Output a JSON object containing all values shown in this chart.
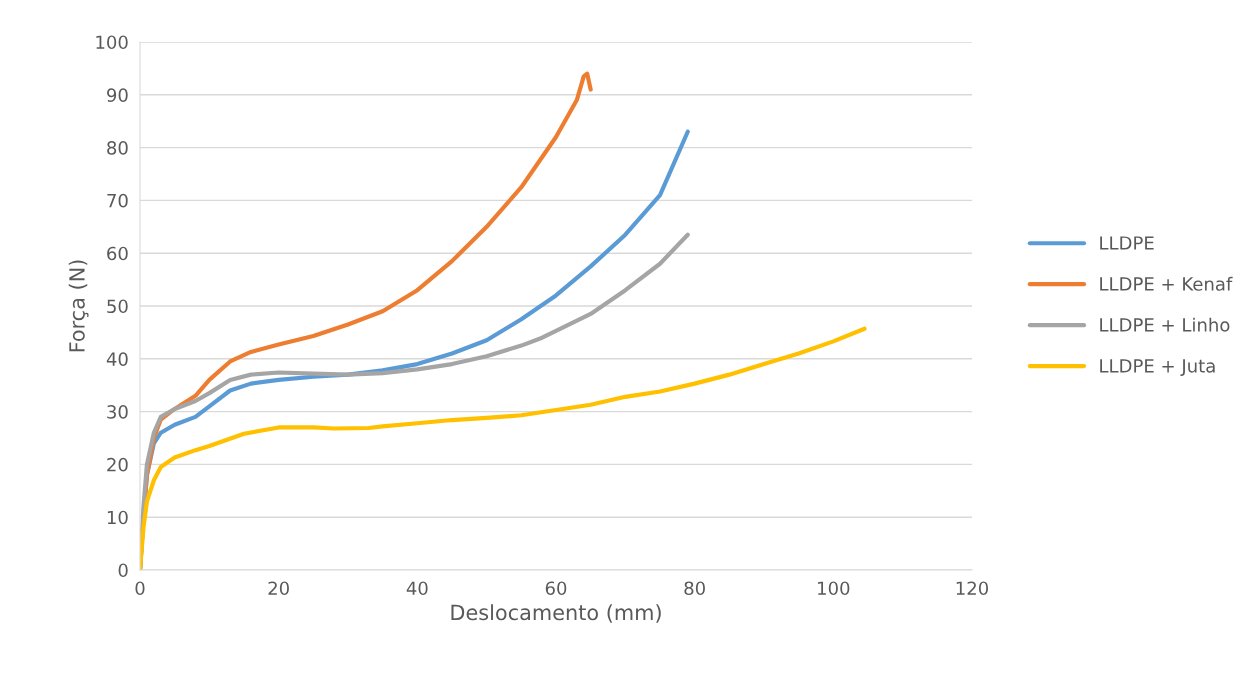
{
  "chart_data": {
    "type": "line",
    "xlabel": "Deslocamento (mm)",
    "ylabel": "Força (N)",
    "xlim": [
      0,
      120
    ],
    "xticks": [
      0,
      20,
      40,
      60,
      80,
      100,
      120
    ],
    "ylim": [
      0,
      100
    ],
    "yticks": [
      0,
      10,
      20,
      30,
      40,
      50,
      60,
      70,
      80,
      90,
      100
    ],
    "grid": "y",
    "legend": "right",
    "marker": "none",
    "line_style": "solid",
    "series": [
      {
        "name": "LLDPE",
        "color": "#5b9bd5",
        "x": [
          0,
          0.5,
          1,
          2,
          3,
          5,
          8,
          10,
          13,
          16,
          20,
          25,
          30,
          35,
          40,
          45,
          50,
          55,
          60,
          65,
          70,
          75,
          79
        ],
        "values": [
          0,
          10,
          18,
          24,
          26,
          27.5,
          29,
          31,
          34,
          35.3,
          36,
          36.6,
          37,
          37.8,
          39,
          41,
          43.5,
          47.5,
          52,
          57.5,
          63.5,
          71,
          83
        ]
      },
      {
        "name": "LLDPE + Kenaf",
        "color": "#ed7d31",
        "x": [
          0,
          0.5,
          1,
          2,
          3,
          5,
          8,
          10,
          13,
          16,
          20,
          25,
          30,
          35,
          40,
          45,
          50,
          55,
          60,
          63,
          64,
          64.5,
          65
        ],
        "values": [
          0,
          10,
          18,
          25,
          28.5,
          30.5,
          33,
          36,
          39.5,
          41.3,
          42.7,
          44.3,
          46.5,
          49,
          53,
          58.5,
          65,
          72.5,
          82,
          89,
          93.5,
          94,
          91
        ]
      },
      {
        "name": "LLDPE + Linho",
        "color": "#a5a5a5",
        "x": [
          0,
          0.5,
          1,
          2,
          3,
          5,
          8,
          10,
          13,
          16,
          20,
          25,
          30,
          35,
          40,
          45,
          50,
          55,
          58,
          60,
          65,
          70,
          75,
          79
        ],
        "values": [
          0,
          12,
          20,
          26,
          29,
          30.5,
          32,
          33.5,
          36,
          37,
          37.4,
          37.2,
          37,
          37.3,
          38,
          39,
          40.5,
          42.5,
          44,
          45.3,
          48.5,
          53,
          58,
          63.5
        ]
      },
      {
        "name": "LLDPE + Juta",
        "color": "#ffc000",
        "x": [
          0,
          0.5,
          1,
          2,
          3,
          5,
          8,
          10,
          15,
          20,
          25,
          28,
          33,
          35,
          40,
          45,
          50,
          55,
          60,
          65,
          70,
          75,
          80,
          85,
          90,
          95,
          100,
          104.5
        ],
        "values": [
          0,
          8,
          13,
          17,
          19.5,
          21.3,
          22.7,
          23.5,
          25.8,
          27,
          27,
          26.8,
          26.9,
          27.2,
          27.8,
          28.4,
          28.8,
          29.3,
          30.3,
          31.3,
          32.8,
          33.8,
          35.3,
          37,
          39,
          41,
          43.3,
          45.7
        ]
      }
    ]
  }
}
